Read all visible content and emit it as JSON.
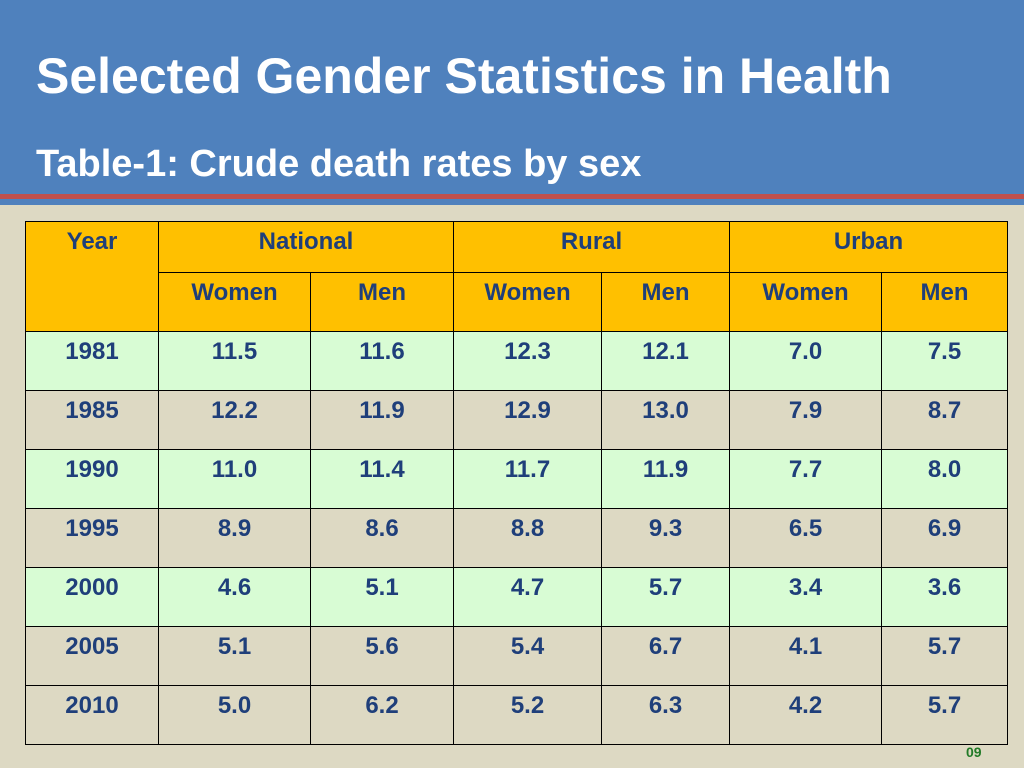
{
  "slide": {
    "title": "Selected Gender Statistics in Health",
    "subtitle": "Table-1: Crude death rates by sex",
    "page_number": "09"
  },
  "colors": {
    "header_bg": "#4f81bd",
    "accent_red": "#c0504d",
    "slide_bg": "#ddd9c3",
    "table_header_bg": "#ffc000",
    "row_alt_bg": "#d8fcd4",
    "text": "#1f3f7a",
    "page_number": "#217a27"
  },
  "table": {
    "year_header": "Year",
    "groups": [
      "National",
      "Rural",
      "Urban"
    ],
    "subheaders": [
      "Women",
      "Men",
      "Women",
      "Men",
      "Women",
      "Men"
    ],
    "rows": [
      [
        "1981",
        "11.5",
        "11.6",
        "12.3",
        "12.1",
        "7.0",
        "7.5"
      ],
      [
        "1985",
        "12.2",
        "11.9",
        "12.9",
        "13.0",
        "7.9",
        "8.7"
      ],
      [
        "1990",
        "11.0",
        "11.4",
        "11.7",
        "11.9",
        "7.7",
        "8.0"
      ],
      [
        "1995",
        "8.9",
        "8.6",
        "8.8",
        "9.3",
        "6.5",
        "6.9"
      ],
      [
        "2000",
        "4.6",
        "5.1",
        "4.7",
        "5.7",
        "3.4",
        "3.6"
      ],
      [
        "2005",
        "5.1",
        "5.6",
        "5.4",
        "6.7",
        "4.1",
        "5.7"
      ],
      [
        "2010",
        "5.0",
        "6.2",
        "5.2",
        "6.3",
        "4.2",
        "5.7"
      ]
    ]
  }
}
